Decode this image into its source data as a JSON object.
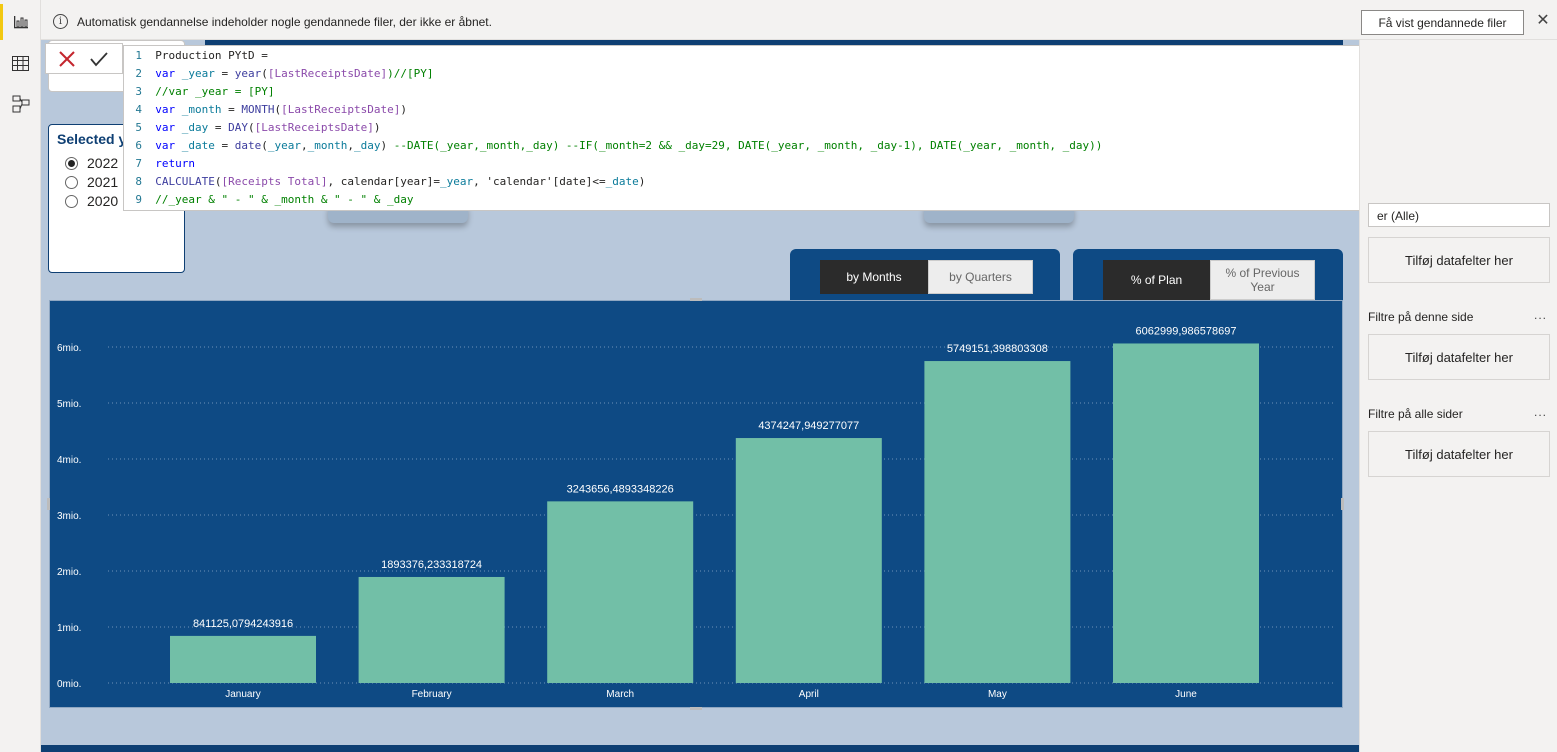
{
  "notification": {
    "text": "Automatisk gendannelse indeholder nogle gendannede filer, der ikke er åbnet.",
    "button_label": "Få vist gendannede filer",
    "close_glyph": "✕",
    "info_glyph": "i"
  },
  "rail": {
    "items": [
      {
        "name": "report-view-icon",
        "active": true
      },
      {
        "name": "data-view-icon",
        "active": false
      },
      {
        "name": "model-view-icon",
        "active": false
      }
    ],
    "accent": "#f2c811"
  },
  "formula": {
    "lines": [
      {
        "n": "1",
        "segments": [
          {
            "t": "Production PYtD =",
            "c": "pl"
          }
        ]
      },
      {
        "n": "2",
        "segments": [
          {
            "t": "var",
            "c": "kw"
          },
          {
            "t": " _year",
            "c": "vr"
          },
          {
            "t": " = ",
            "c": "pl"
          },
          {
            "t": "year",
            "c": "fn"
          },
          {
            "t": "(",
            "c": "pl"
          },
          {
            "t": "[LastReceiptsDate]",
            "c": "ms"
          },
          {
            "t": ")//[PY]",
            "c": "cm"
          }
        ]
      },
      {
        "n": "3",
        "segments": [
          {
            "t": "//var _year = [PY]",
            "c": "cm"
          }
        ]
      },
      {
        "n": "4",
        "segments": [
          {
            "t": "var",
            "c": "kw"
          },
          {
            "t": " _month",
            "c": "vr"
          },
          {
            "t": " = ",
            "c": "pl"
          },
          {
            "t": "MONTH",
            "c": "fn"
          },
          {
            "t": "(",
            "c": "pl"
          },
          {
            "t": "[LastReceiptsDate]",
            "c": "ms"
          },
          {
            "t": ")",
            "c": "pl"
          }
        ]
      },
      {
        "n": "5",
        "segments": [
          {
            "t": "var",
            "c": "kw"
          },
          {
            "t": " _day",
            "c": "vr"
          },
          {
            "t": " = ",
            "c": "pl"
          },
          {
            "t": "DAY",
            "c": "fn"
          },
          {
            "t": "(",
            "c": "pl"
          },
          {
            "t": "[LastReceiptsDate]",
            "c": "ms"
          },
          {
            "t": ")",
            "c": "pl"
          }
        ]
      },
      {
        "n": "6",
        "segments": [
          {
            "t": "var",
            "c": "kw"
          },
          {
            "t": " _date",
            "c": "vr"
          },
          {
            "t": " = ",
            "c": "pl"
          },
          {
            "t": "date",
            "c": "fn"
          },
          {
            "t": "(",
            "c": "pl"
          },
          {
            "t": "_year",
            "c": "vr"
          },
          {
            "t": ",",
            "c": "pl"
          },
          {
            "t": "_month",
            "c": "vr"
          },
          {
            "t": ",",
            "c": "pl"
          },
          {
            "t": "_day",
            "c": "vr"
          },
          {
            "t": ") ",
            "c": "pl"
          },
          {
            "t": "--DATE(_year,_month,_day) --IF(_month=2 && _day=29, DATE(_year, _month, _day-1), DATE(_year, _month, _day))",
            "c": "cm"
          }
        ]
      },
      {
        "n": "7",
        "segments": [
          {
            "t": "return",
            "c": "kw"
          }
        ]
      },
      {
        "n": "8",
        "segments": [
          {
            "t": "CALCULATE",
            "c": "fn"
          },
          {
            "t": "(",
            "c": "pl"
          },
          {
            "t": "[Receipts Total]",
            "c": "ms"
          },
          {
            "t": ", calendar[year]=",
            "c": "pl"
          },
          {
            "t": "_year",
            "c": "vr"
          },
          {
            "t": ", 'calendar'[date]<=",
            "c": "pl"
          },
          {
            "t": "_date",
            "c": "vr"
          },
          {
            "t": ")",
            "c": "pl"
          }
        ]
      },
      {
        "n": "9",
        "segments": [
          {
            "t": "//_year & \" - \" & _month & \" - \" & _day",
            "c": "cm"
          }
        ]
      }
    ]
  },
  "slicer": {
    "title": "Selected ye",
    "options": [
      {
        "label": "2022",
        "checked": true
      },
      {
        "label": "2021",
        "checked": false
      },
      {
        "label": "2020",
        "checked": false
      }
    ]
  },
  "toggles": {
    "period": [
      {
        "label": "by Months",
        "on": true
      },
      {
        "label": "by Quarters",
        "on": false
      }
    ],
    "measure": [
      {
        "label": "% of Plan",
        "on": true
      },
      {
        "label": "% of Previous Year",
        "on": false
      }
    ]
  },
  "filters": {
    "visual_filter_value": "er (Alle)",
    "add_field_label": "Tilføj datafelter her",
    "page_filters_header": "Filtre på denne side",
    "all_pages_header": "Filtre på alle sider",
    "more_glyph": "..."
  },
  "chart_data": {
    "type": "bar",
    "categories": [
      "January",
      "February",
      "March",
      "April",
      "May",
      "June"
    ],
    "values": [
      841125.0794243916,
      1893376.233318724,
      3243656.4893348226,
      4374247.949277077,
      5749151.398803308,
      6062999.986578697
    ],
    "data_labels": [
      "841125,0794243916",
      "1893376,233318724",
      "3243656,4893348226",
      "4374247,949277077",
      "5749151,398803308",
      "6062999,986578697"
    ],
    "y_ticks": [
      0,
      1000000,
      2000000,
      3000000,
      4000000,
      5000000,
      6000000
    ],
    "y_tick_labels": [
      "0mio.",
      "1mio.",
      "2mio.",
      "3mio.",
      "4mio.",
      "5mio.",
      "6mio."
    ],
    "ylim": [
      0,
      6000000
    ],
    "grid": true,
    "bar_color": "#72bfa7",
    "background": "#0e4a84",
    "title": "",
    "xlabel": "",
    "ylabel": ""
  }
}
